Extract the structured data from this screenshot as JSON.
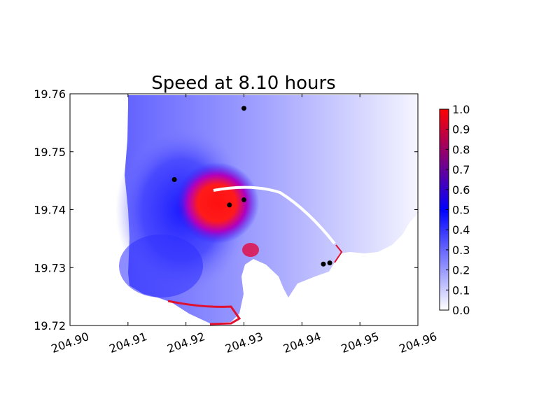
{
  "chart_data": {
    "type": "heatmap",
    "title": "Speed at 8.10 hours",
    "xlabel": "",
    "ylabel": "",
    "xlim": [
      204.9,
      204.96
    ],
    "ylim": [
      19.72,
      19.76
    ],
    "x_ticks": [
      "204.90",
      "204.91",
      "204.92",
      "204.93",
      "204.94",
      "204.95",
      "204.96"
    ],
    "y_ticks": [
      "19.72",
      "19.73",
      "19.74",
      "19.75",
      "19.76"
    ],
    "colorbar": {
      "min": 0.0,
      "max": 1.0,
      "ticks": [
        "0.0",
        "0.1",
        "0.2",
        "0.3",
        "0.4",
        "0.5",
        "0.6",
        "0.7",
        "0.8",
        "0.9",
        "1.0"
      ],
      "colors": [
        "#ffffff",
        "#0000ff",
        "#ff0000"
      ]
    },
    "points": [
      {
        "x": 204.93,
        "y": 19.7575
      },
      {
        "x": 204.918,
        "y": 19.7452
      },
      {
        "x": 204.93,
        "y": 19.7417
      },
      {
        "x": 204.9275,
        "y": 19.7408
      },
      {
        "x": 204.9437,
        "y": 19.7306
      },
      {
        "x": 204.9448,
        "y": 19.7308
      }
    ],
    "grid": false
  }
}
